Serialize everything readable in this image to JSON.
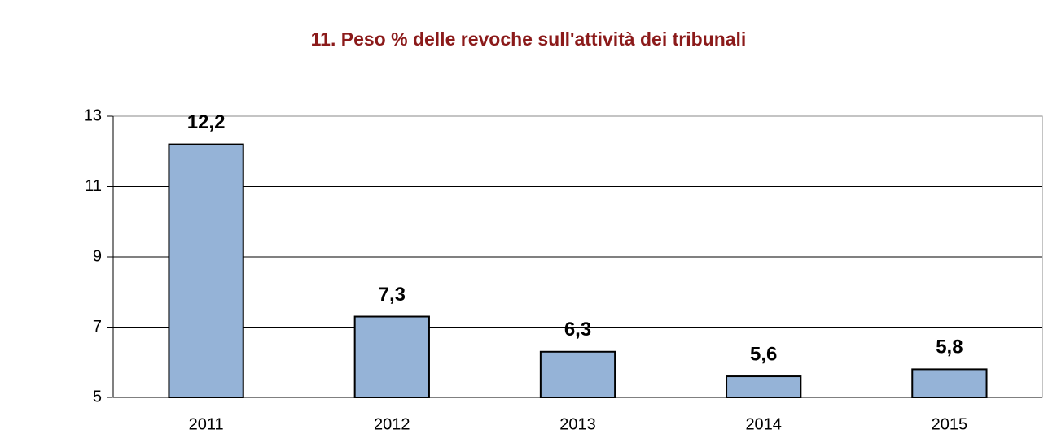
{
  "chart_data": {
    "type": "bar",
    "title": "11. Peso % delle revoche sull'attività dei tribunali",
    "categories": [
      "2011",
      "2012",
      "2013",
      "2014",
      "2015"
    ],
    "values": [
      12.2,
      7.3,
      6.3,
      5.6,
      5.8
    ],
    "value_labels": [
      "12,2",
      "7,3",
      "6,3",
      "5,6",
      "5,8"
    ],
    "color": "#95b3d7",
    "ylim": [
      5,
      13
    ],
    "yticks": [
      5,
      7,
      9,
      11,
      13
    ],
    "grid": true
  }
}
